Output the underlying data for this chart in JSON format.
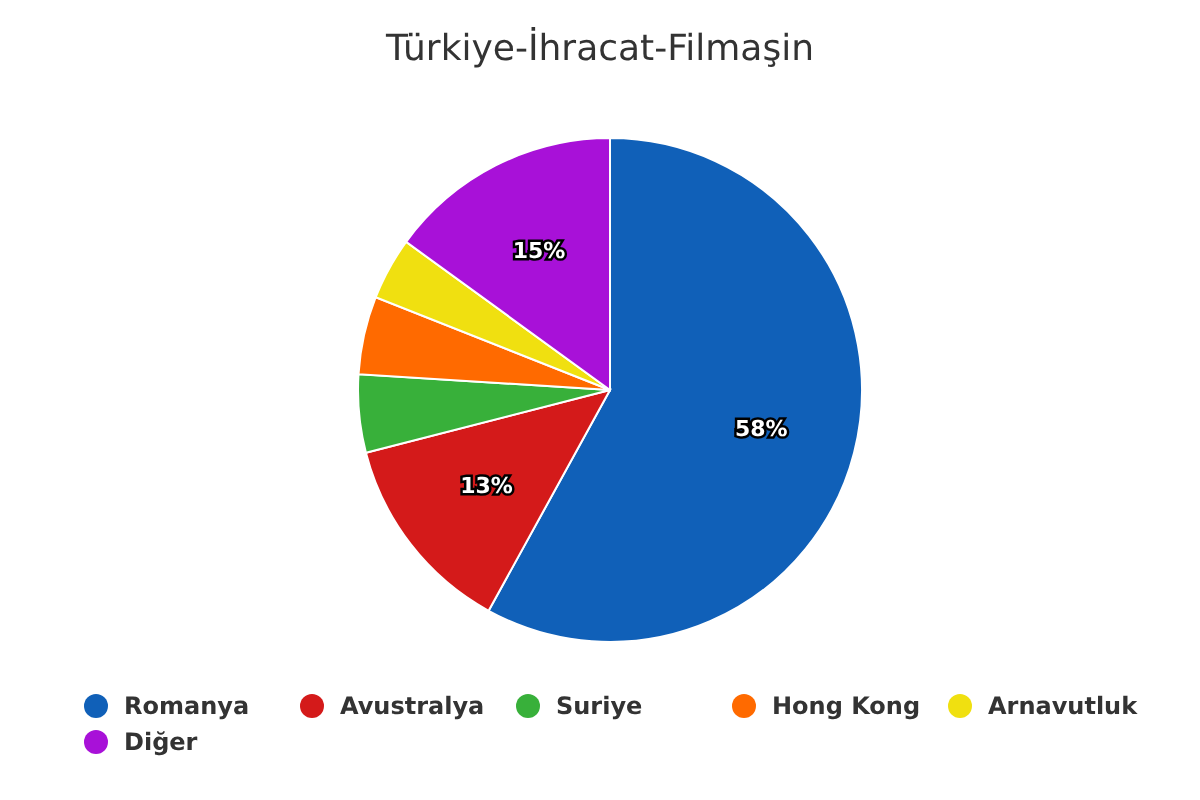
{
  "chart_data": {
    "type": "pie",
    "title": "Türkiye-İhracat-Filmaşin",
    "categories": [
      "Romanya",
      "Avustralya",
      "Suriye",
      "Hong Kong",
      "Arnavutluk",
      "Diğer"
    ],
    "values": [
      58,
      13,
      5,
      5,
      4,
      15
    ],
    "colors": [
      "#1060b8",
      "#d41a1a",
      "#38b03a",
      "#ff6a00",
      "#f0e010",
      "#a811d8"
    ],
    "value_labels": [
      "58%",
      "13%",
      null,
      null,
      null,
      "15%"
    ],
    "legend": "bottom"
  }
}
